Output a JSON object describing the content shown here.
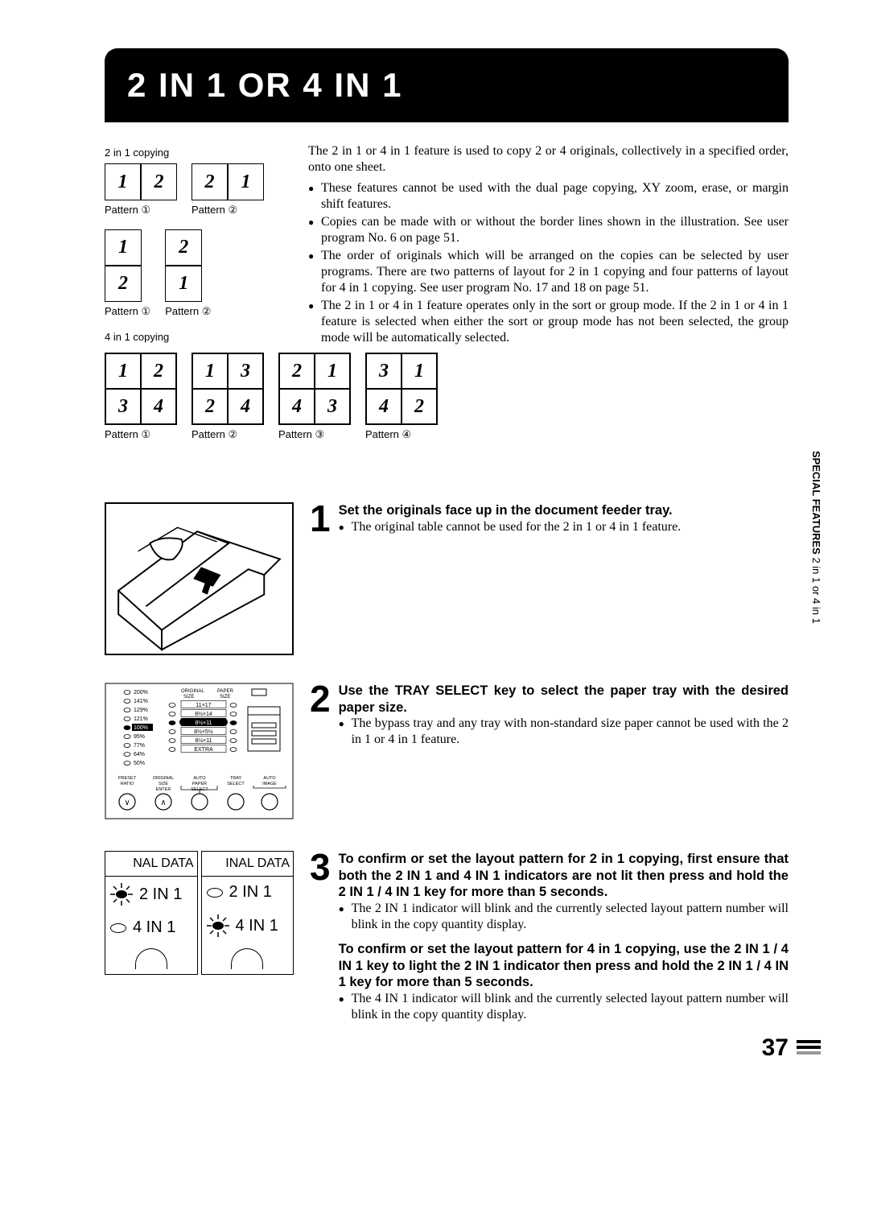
{
  "title": "2 IN 1 OR 4 IN 1",
  "labels": {
    "two_in_one_copying": "2 in 1 copying",
    "four_in_one_copying": "4 in 1 copying",
    "pattern1": "Pattern ①",
    "pattern2": "Pattern ②",
    "pattern3": "Pattern ③",
    "pattern4": "Pattern ④"
  },
  "pat2in1_h": [
    {
      "cells": [
        "1",
        "2"
      ],
      "label_key": "labels.pattern1"
    },
    {
      "cells": [
        "2",
        "1"
      ],
      "label_key": "labels.pattern2"
    }
  ],
  "pat2in1_v": [
    {
      "cells": [
        "1",
        "2"
      ],
      "label_key": "labels.pattern1"
    },
    {
      "cells": [
        "2",
        "1"
      ],
      "label_key": "labels.pattern2"
    }
  ],
  "pat4in1": [
    {
      "cells": [
        "1",
        "2",
        "3",
        "4"
      ],
      "label_key": "labels.pattern1"
    },
    {
      "cells": [
        "1",
        "3",
        "2",
        "4"
      ],
      "label_key": "labels.pattern2"
    },
    {
      "cells": [
        "2",
        "1",
        "4",
        "3"
      ],
      "label_key": "labels.pattern3"
    },
    {
      "cells": [
        "3",
        "1",
        "4",
        "2"
      ],
      "label_key": "labels.pattern4"
    }
  ],
  "intro": "The 2 in 1 or 4 in 1 feature is used to copy 2 or 4 originals, collectively in a specified order, onto one sheet.",
  "intro_bullets": [
    "These features cannot be used with the dual page copying, XY zoom, erase, or margin shift features.",
    "Copies can be made with or without the border lines shown in the illustration. See user program No. 6 on page 51.",
    "The order of originals which will be arranged on the copies can be selected by user programs. There are two patterns of layout for 2 in 1 copying and four patterns of layout for 4 in 1 copying. See user program No. 17 and 18 on page 51.",
    "The 2 in 1 or 4 in 1 feature operates only in the sort or group mode. If the 2 in 1 or 4 in 1 feature is selected when either the sort or group mode has not been selected, the group mode will be automatically selected."
  ],
  "steps": {
    "s1": {
      "num": "1",
      "heading": "Set the originals face up in the document feeder tray.",
      "bullets": [
        "The original table cannot be used for the 2 in 1 or 4 in 1 feature."
      ]
    },
    "s2": {
      "num": "2",
      "heading": "Use the TRAY SELECT key to select the paper tray with the desired paper size.",
      "bullets": [
        "The bypass tray and any tray with non-standard size paper cannot be used with the 2 in 1 or 4 in 1 feature."
      ]
    },
    "s3": {
      "num": "3",
      "heading": "To confirm or set the layout pattern for 2 in 1 copying, first ensure that both the 2 IN 1 and 4 IN 1 indicators are not lit then press and hold the 2 IN 1 / 4 IN 1 key for more than 5 seconds.",
      "bullets": [
        "The 2 IN 1 indicator will blink and the currently selected layout pattern number will blink in the copy quantity display."
      ],
      "heading2": "To confirm or set the layout pattern for 4 in 1 copying, use the 2 IN 1 /  4 IN 1 key to light the 2 IN 1 indicator then press and hold the 2 IN 1 / 4 IN 1 key for more than 5 seconds.",
      "bullets2": [
        "The 4 IN 1 indicator will blink and the currently selected layout pattern number will blink in the copy quantity display."
      ]
    }
  },
  "panel": {
    "ratios": [
      "200%",
      "141%",
      "129%",
      "121%",
      "100%",
      "95%",
      "77%",
      "64%",
      "50%"
    ],
    "active_ratio_index": 4,
    "original_header": "ORIGINAL SIZE",
    "paper_header": "PAPER SIZE",
    "sizes": [
      "11×17",
      "8½×14",
      "8½×11",
      "8½×5½",
      "8½×11",
      "EXTRA"
    ],
    "active_size_index": 2,
    "btn_labels": [
      "PRESET RATIO",
      "ORIGINAL SIZE ENTER",
      "AUTO PAPER SELECT",
      "TRAY SELECT",
      "AUTO IMAGE"
    ]
  },
  "indicator": {
    "header": "NAL DATA",
    "header2": "INAL DATA",
    "row1": "2 IN 1",
    "row2": "4 IN 1"
  },
  "side": {
    "bold": "SPECIAL FEATURES",
    "normal": "  2 in 1 or 4 in 1"
  },
  "page_number": "37",
  "colors": {
    "bg": "#ffffff",
    "fg": "#000000",
    "gray": "#999999"
  },
  "fonts": {
    "title_size_pt": 42,
    "body_size_pt": 16,
    "stepnum_size_pt": 46
  }
}
